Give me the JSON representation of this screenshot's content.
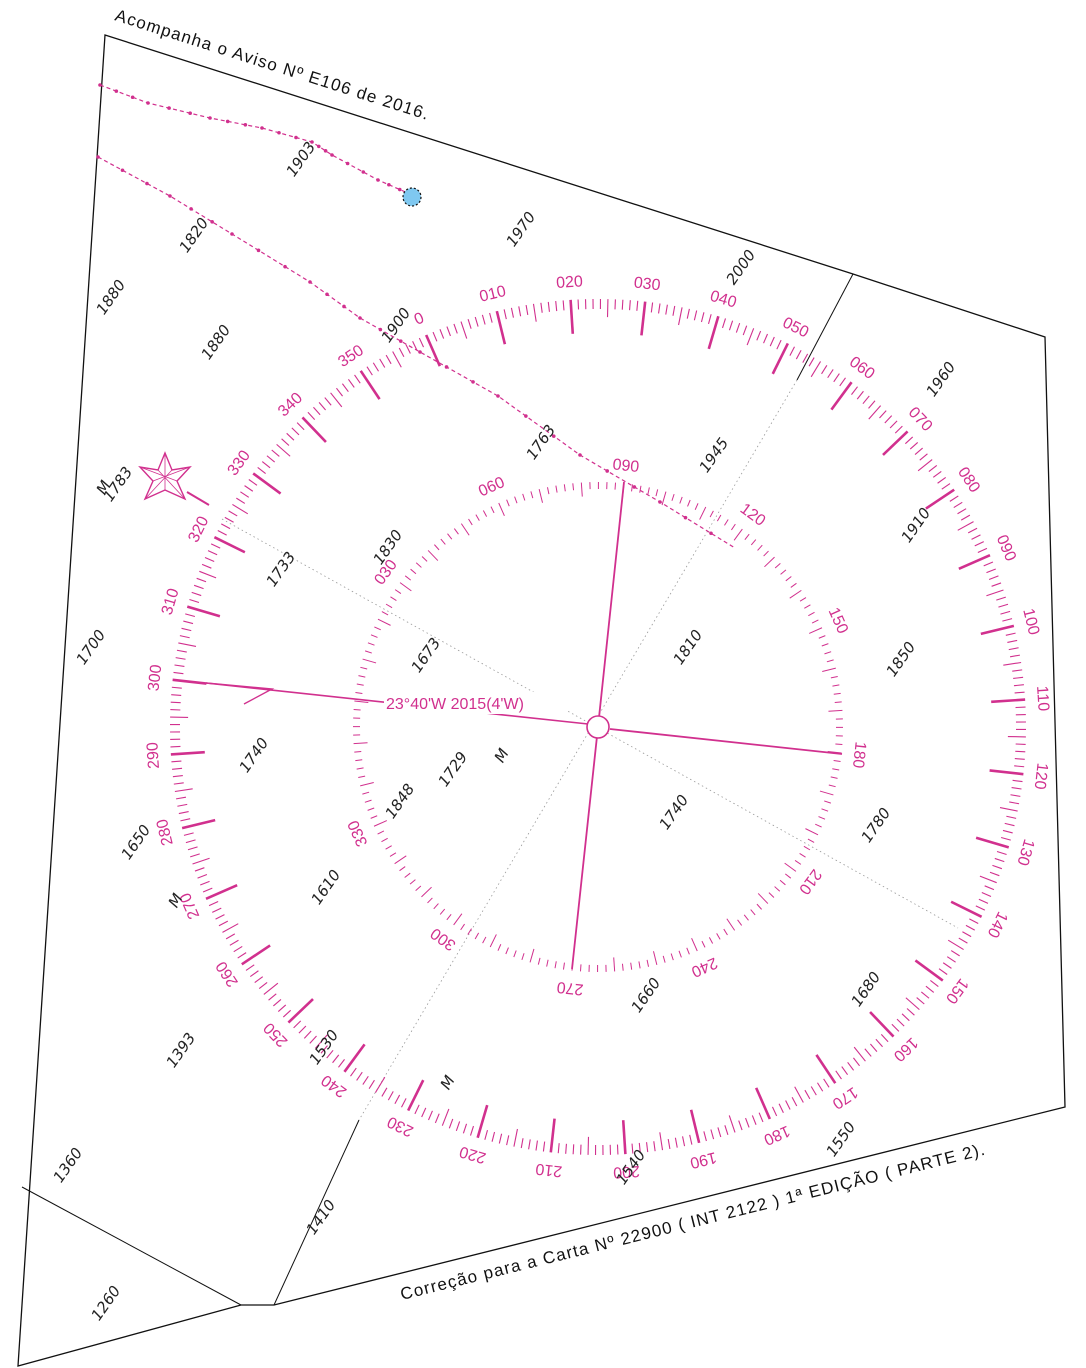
{
  "header_note": "Acompanha o Aviso Nº E106 de 2016.",
  "footer_note": "Correção para a Carta Nº 22900 ( INT 2122 ) 1ª EDIÇÃO ( PARTE 2).",
  "variation_label": "23°40'W 2015(4'W)",
  "seabed_marker": "M",
  "colors": {
    "magenta": "#d1308e",
    "buoy_fill": "#7fc8f0",
    "line": "#111111"
  },
  "outer_ring_labels": [
    "0",
    "010",
    "020",
    "030",
    "040",
    "050",
    "060",
    "070",
    "080",
    "090",
    "100",
    "110",
    "120",
    "130",
    "140",
    "150",
    "160",
    "170",
    "180",
    "190",
    "200",
    "210",
    "220",
    "230",
    "240",
    "250",
    "260",
    "270",
    "280",
    "290",
    "300",
    "310",
    "320",
    "330",
    "340",
    "350"
  ],
  "inner_ring_labels": [
    "030",
    "060",
    "090",
    "120",
    "150",
    "180",
    "210",
    "240",
    "270",
    "300",
    "330"
  ],
  "soundings": [
    {
      "text": "1903"
    },
    {
      "text": "1970"
    },
    {
      "text": "2000"
    },
    {
      "text": "1820"
    },
    {
      "text": "1880"
    },
    {
      "text": "1880"
    },
    {
      "text": "1900"
    },
    {
      "text": "1960"
    },
    {
      "text": "1783"
    },
    {
      "text": "1763"
    },
    {
      "text": "1945"
    },
    {
      "text": "1910"
    },
    {
      "text": "1733"
    },
    {
      "text": "1830"
    },
    {
      "text": "1700"
    },
    {
      "text": "1673"
    },
    {
      "text": "1810"
    },
    {
      "text": "1850"
    },
    {
      "text": "1740"
    },
    {
      "text": "1729"
    },
    {
      "text": "1848"
    },
    {
      "text": "1650"
    },
    {
      "text": "1740"
    },
    {
      "text": "1780"
    },
    {
      "text": "1610"
    },
    {
      "text": "1660"
    },
    {
      "text": "1680"
    },
    {
      "text": "1393"
    },
    {
      "text": "1530"
    },
    {
      "text": "1540"
    },
    {
      "text": "1550"
    },
    {
      "text": "1360"
    },
    {
      "text": "1410"
    },
    {
      "text": "1260"
    }
  ],
  "seabed_markers": [
    {
      "text": "M"
    },
    {
      "text": "M"
    },
    {
      "text": "M"
    },
    {
      "text": "M"
    }
  ]
}
